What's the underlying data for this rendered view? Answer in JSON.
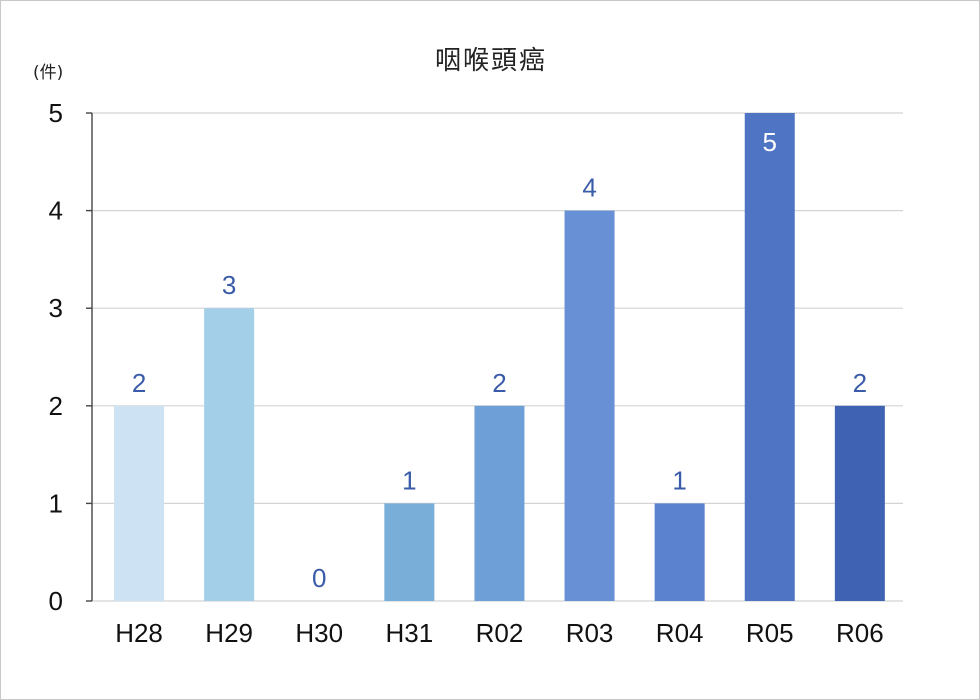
{
  "chart_data": {
    "type": "bar",
    "title": "咽喉頭癌",
    "ylabel": "(件)",
    "xlabel": "",
    "categories": [
      "H28",
      "H29",
      "H30",
      "H31",
      "R02",
      "R03",
      "R04",
      "R05",
      "R06"
    ],
    "values": [
      2,
      3,
      0,
      1,
      2,
      4,
      1,
      5,
      2
    ],
    "ylim": [
      0,
      5
    ],
    "yticks": [
      0,
      1,
      2,
      3,
      4,
      5
    ],
    "grid": true,
    "bar_colors": [
      "#cde3f4",
      "#a4cfe8",
      "#8bbcdc",
      "#78aed7",
      "#6e9fd6",
      "#6790d5",
      "#5a82cf",
      "#4f74c4",
      "#3f62b3"
    ],
    "label_color_outside": "#3a5ba8",
    "label_color_inside": "#ffffff"
  }
}
